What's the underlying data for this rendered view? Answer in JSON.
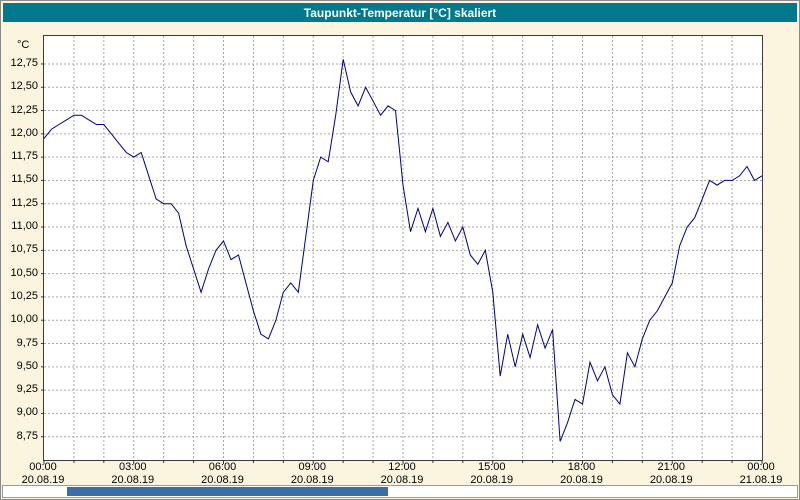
{
  "title": "Taupunkt-Temperatur [°C] skaliert",
  "colors": {
    "title_bar": "#00798F",
    "background": "#FBF5E0",
    "line": "#000080",
    "grid": "#A6A6A6",
    "scroll_thumb": "#3A6EA5"
  },
  "scrollbar": {
    "thumb_left_pct": 8,
    "thumb_width_pct": 40.5
  },
  "chart_data": {
    "type": "line",
    "title": "Taupunkt-Temperatur [°C] skaliert",
    "xlabel": "",
    "ylabel": "°C",
    "ylim": [
      8.5,
      13.05
    ],
    "xlim_hours": [
      0,
      24
    ],
    "y_grid_step": 0.25,
    "minor_grid_step_hours": 1,
    "x_tick_step_hours": 3,
    "grid": true,
    "legend": "none",
    "y_tick_labels": [
      "12,75",
      "12,50",
      "12,25",
      "12,00",
      "11,75",
      "11,50",
      "11,25",
      "11,00",
      "10,75",
      "10,50",
      "10,25",
      "10,00",
      "9,75",
      "9,50",
      "9,25",
      "9,00",
      "8,75"
    ],
    "y_tick_values": [
      12.75,
      12.5,
      12.25,
      12.0,
      11.75,
      11.5,
      11.25,
      11.0,
      10.75,
      10.5,
      10.25,
      10.0,
      9.75,
      9.5,
      9.25,
      9.0,
      8.75
    ],
    "x_ticks": [
      {
        "time": "00:00",
        "date": "20.08.19"
      },
      {
        "time": "03:00",
        "date": "20.08.19"
      },
      {
        "time": "06:00",
        "date": "20.08.19"
      },
      {
        "time": "09:00",
        "date": "20.08.19"
      },
      {
        "time": "12:00",
        "date": "20.08.19"
      },
      {
        "time": "15:00",
        "date": "20.08.19"
      },
      {
        "time": "18:00",
        "date": "20.08.19"
      },
      {
        "time": "21:00",
        "date": "20.08.19"
      },
      {
        "time": "00:00",
        "date": "21.08.19"
      }
    ],
    "series": [
      {
        "name": "Taupunkt",
        "x_start_hour": 0,
        "x_step_hours": 0.25,
        "values": [
          11.95,
          12.05,
          12.1,
          12.15,
          12.2,
          12.2,
          12.15,
          12.1,
          12.1,
          12.0,
          11.9,
          11.8,
          11.75,
          11.8,
          11.55,
          11.3,
          11.25,
          11.25,
          11.15,
          10.8,
          10.55,
          10.3,
          10.55,
          10.75,
          10.85,
          10.65,
          10.7,
          10.4,
          10.1,
          9.85,
          9.8,
          10.0,
          10.3,
          10.4,
          10.3,
          10.9,
          11.5,
          11.75,
          11.7,
          12.2,
          12.8,
          12.45,
          12.3,
          12.5,
          12.35,
          12.2,
          12.3,
          12.25,
          11.45,
          10.95,
          11.2,
          10.95,
          11.2,
          10.9,
          11.05,
          10.85,
          11.0,
          10.7,
          10.6,
          10.75,
          10.3,
          9.4,
          9.85,
          9.5,
          9.85,
          9.6,
          9.95,
          9.7,
          9.9,
          8.7,
          8.9,
          9.15,
          9.1,
          9.55,
          9.35,
          9.5,
          9.2,
          9.1,
          9.65,
          9.5,
          9.8,
          10.0,
          10.1,
          10.25,
          10.4,
          10.8,
          11.0,
          11.1,
          11.3,
          11.5,
          11.45,
          11.5,
          11.5,
          11.55,
          11.65,
          11.5,
          11.55
        ]
      }
    ]
  }
}
